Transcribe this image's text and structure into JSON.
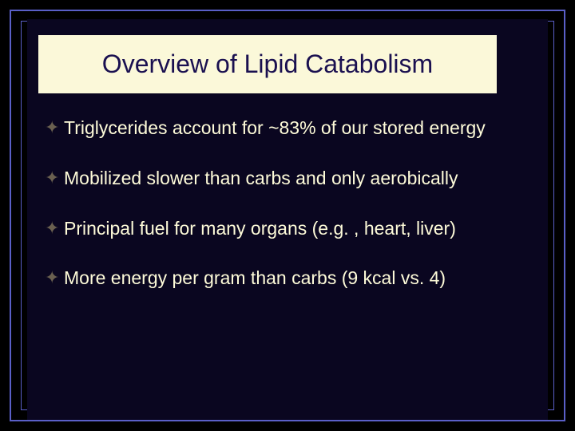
{
  "colors": {
    "slide_bg": "#000000",
    "frame_line": "#5a5fc7",
    "panel_bg": "#0a0620",
    "title_bg": "#fbf8d9",
    "title_text": "#1a1050",
    "body_text": "#fefbd9",
    "bullet_icon": "#6a6050"
  },
  "layout": {
    "outer_border_inset": 12,
    "outer_border_width": 2,
    "inner_border_inset": 26,
    "inner_border_width": 1
  },
  "title": "Overview of Lipid Catabolism",
  "bullet_glyph": "✦",
  "bullets": [
    "Triglycerides account for ~83% of our stored energy",
    "Mobilized slower than carbs and only aerobically",
    "Principal fuel for many organs (e.g. , heart, liver)",
    "More energy per gram than carbs (9 kcal vs. 4)"
  ]
}
